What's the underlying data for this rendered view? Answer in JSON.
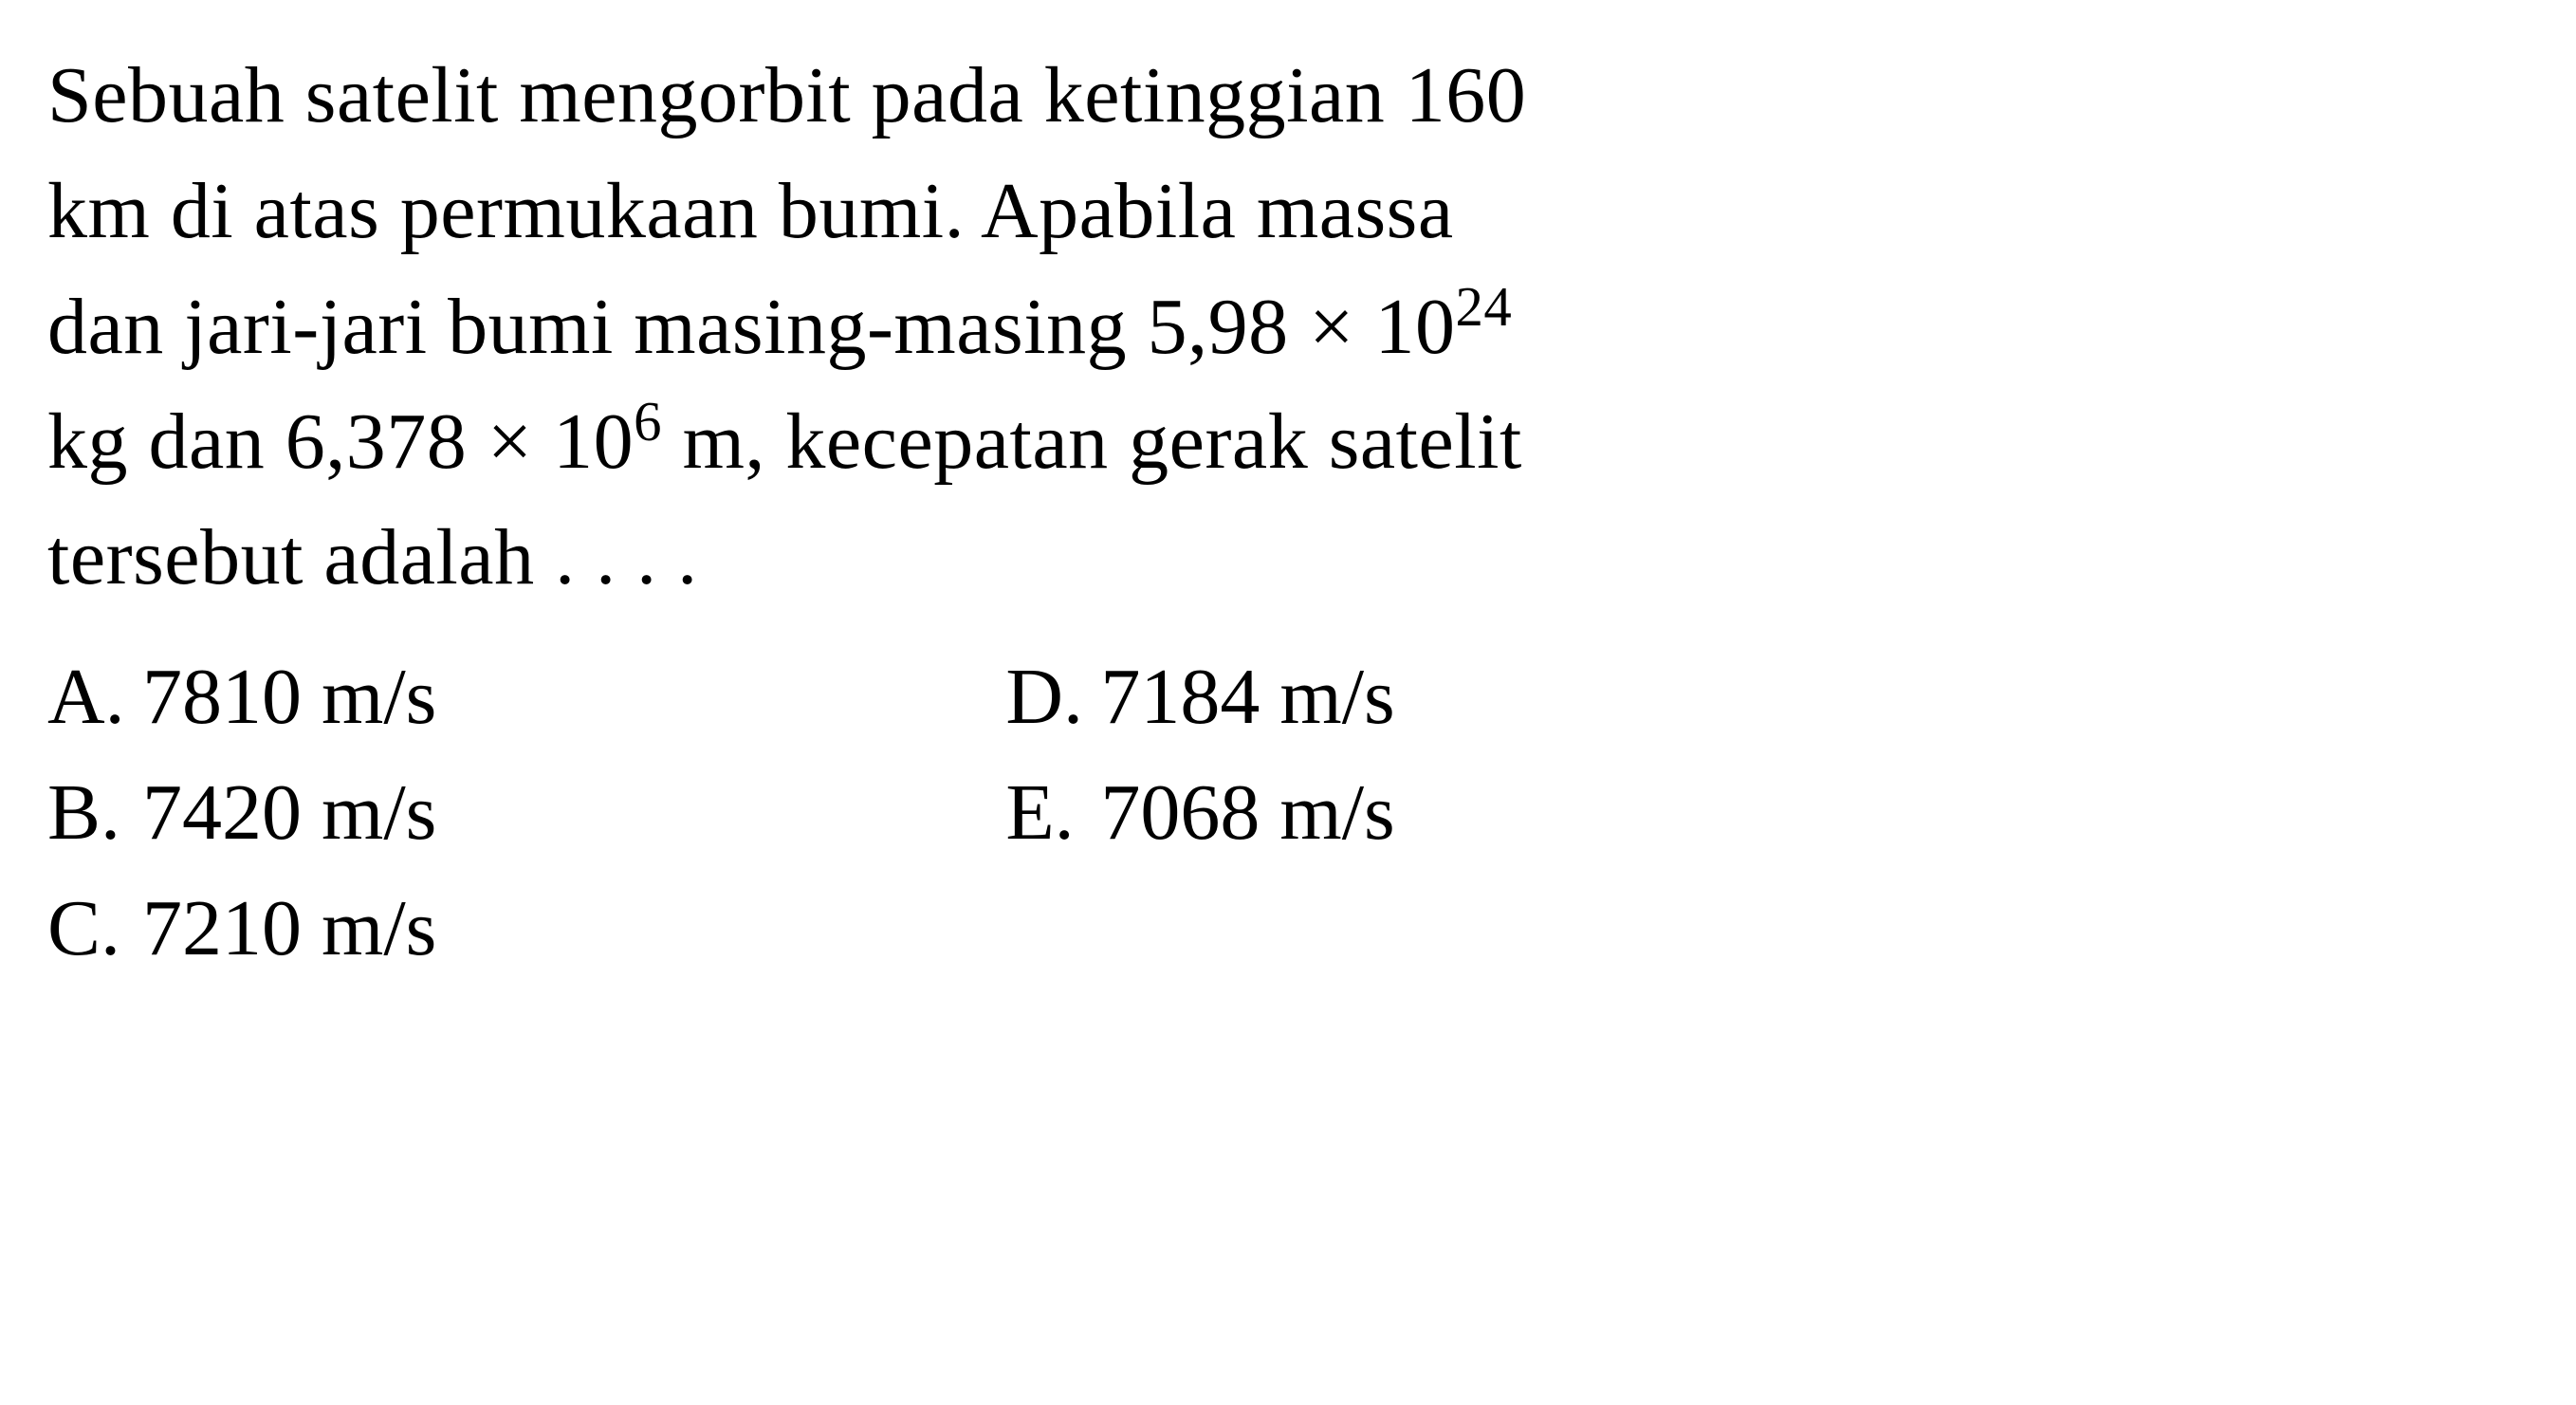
{
  "question": {
    "line1_part1": "Sebuah satelit mengorbit pada ketinggian 160",
    "line2_part1": "km di atas permukaan bumi. Apabila massa",
    "line3_part1": "dan jari-jari bumi masing-masing 5,98 × 10",
    "line3_sup": "24",
    "line4_part1": "kg dan 6,378 × 10",
    "line4_sup": "6",
    "line4_part2": " m, kecepatan gerak satelit",
    "line5_part1": "tersebut adalah . . . ."
  },
  "options": {
    "a": {
      "letter": "A.",
      "value": "7810 m/s"
    },
    "b": {
      "letter": "B.",
      "value": "7420 m/s"
    },
    "c": {
      "letter": "C.",
      "value": "7210 m/s"
    },
    "d": {
      "letter": "D.",
      "value": "7184 m/s"
    },
    "e": {
      "letter": "E.",
      "value": "7068 m/s"
    }
  },
  "style": {
    "font_family": "Times New Roman",
    "font_size_pt": 63,
    "text_color": "#000000",
    "background_color": "#ffffff",
    "line_height": 1.45
  }
}
